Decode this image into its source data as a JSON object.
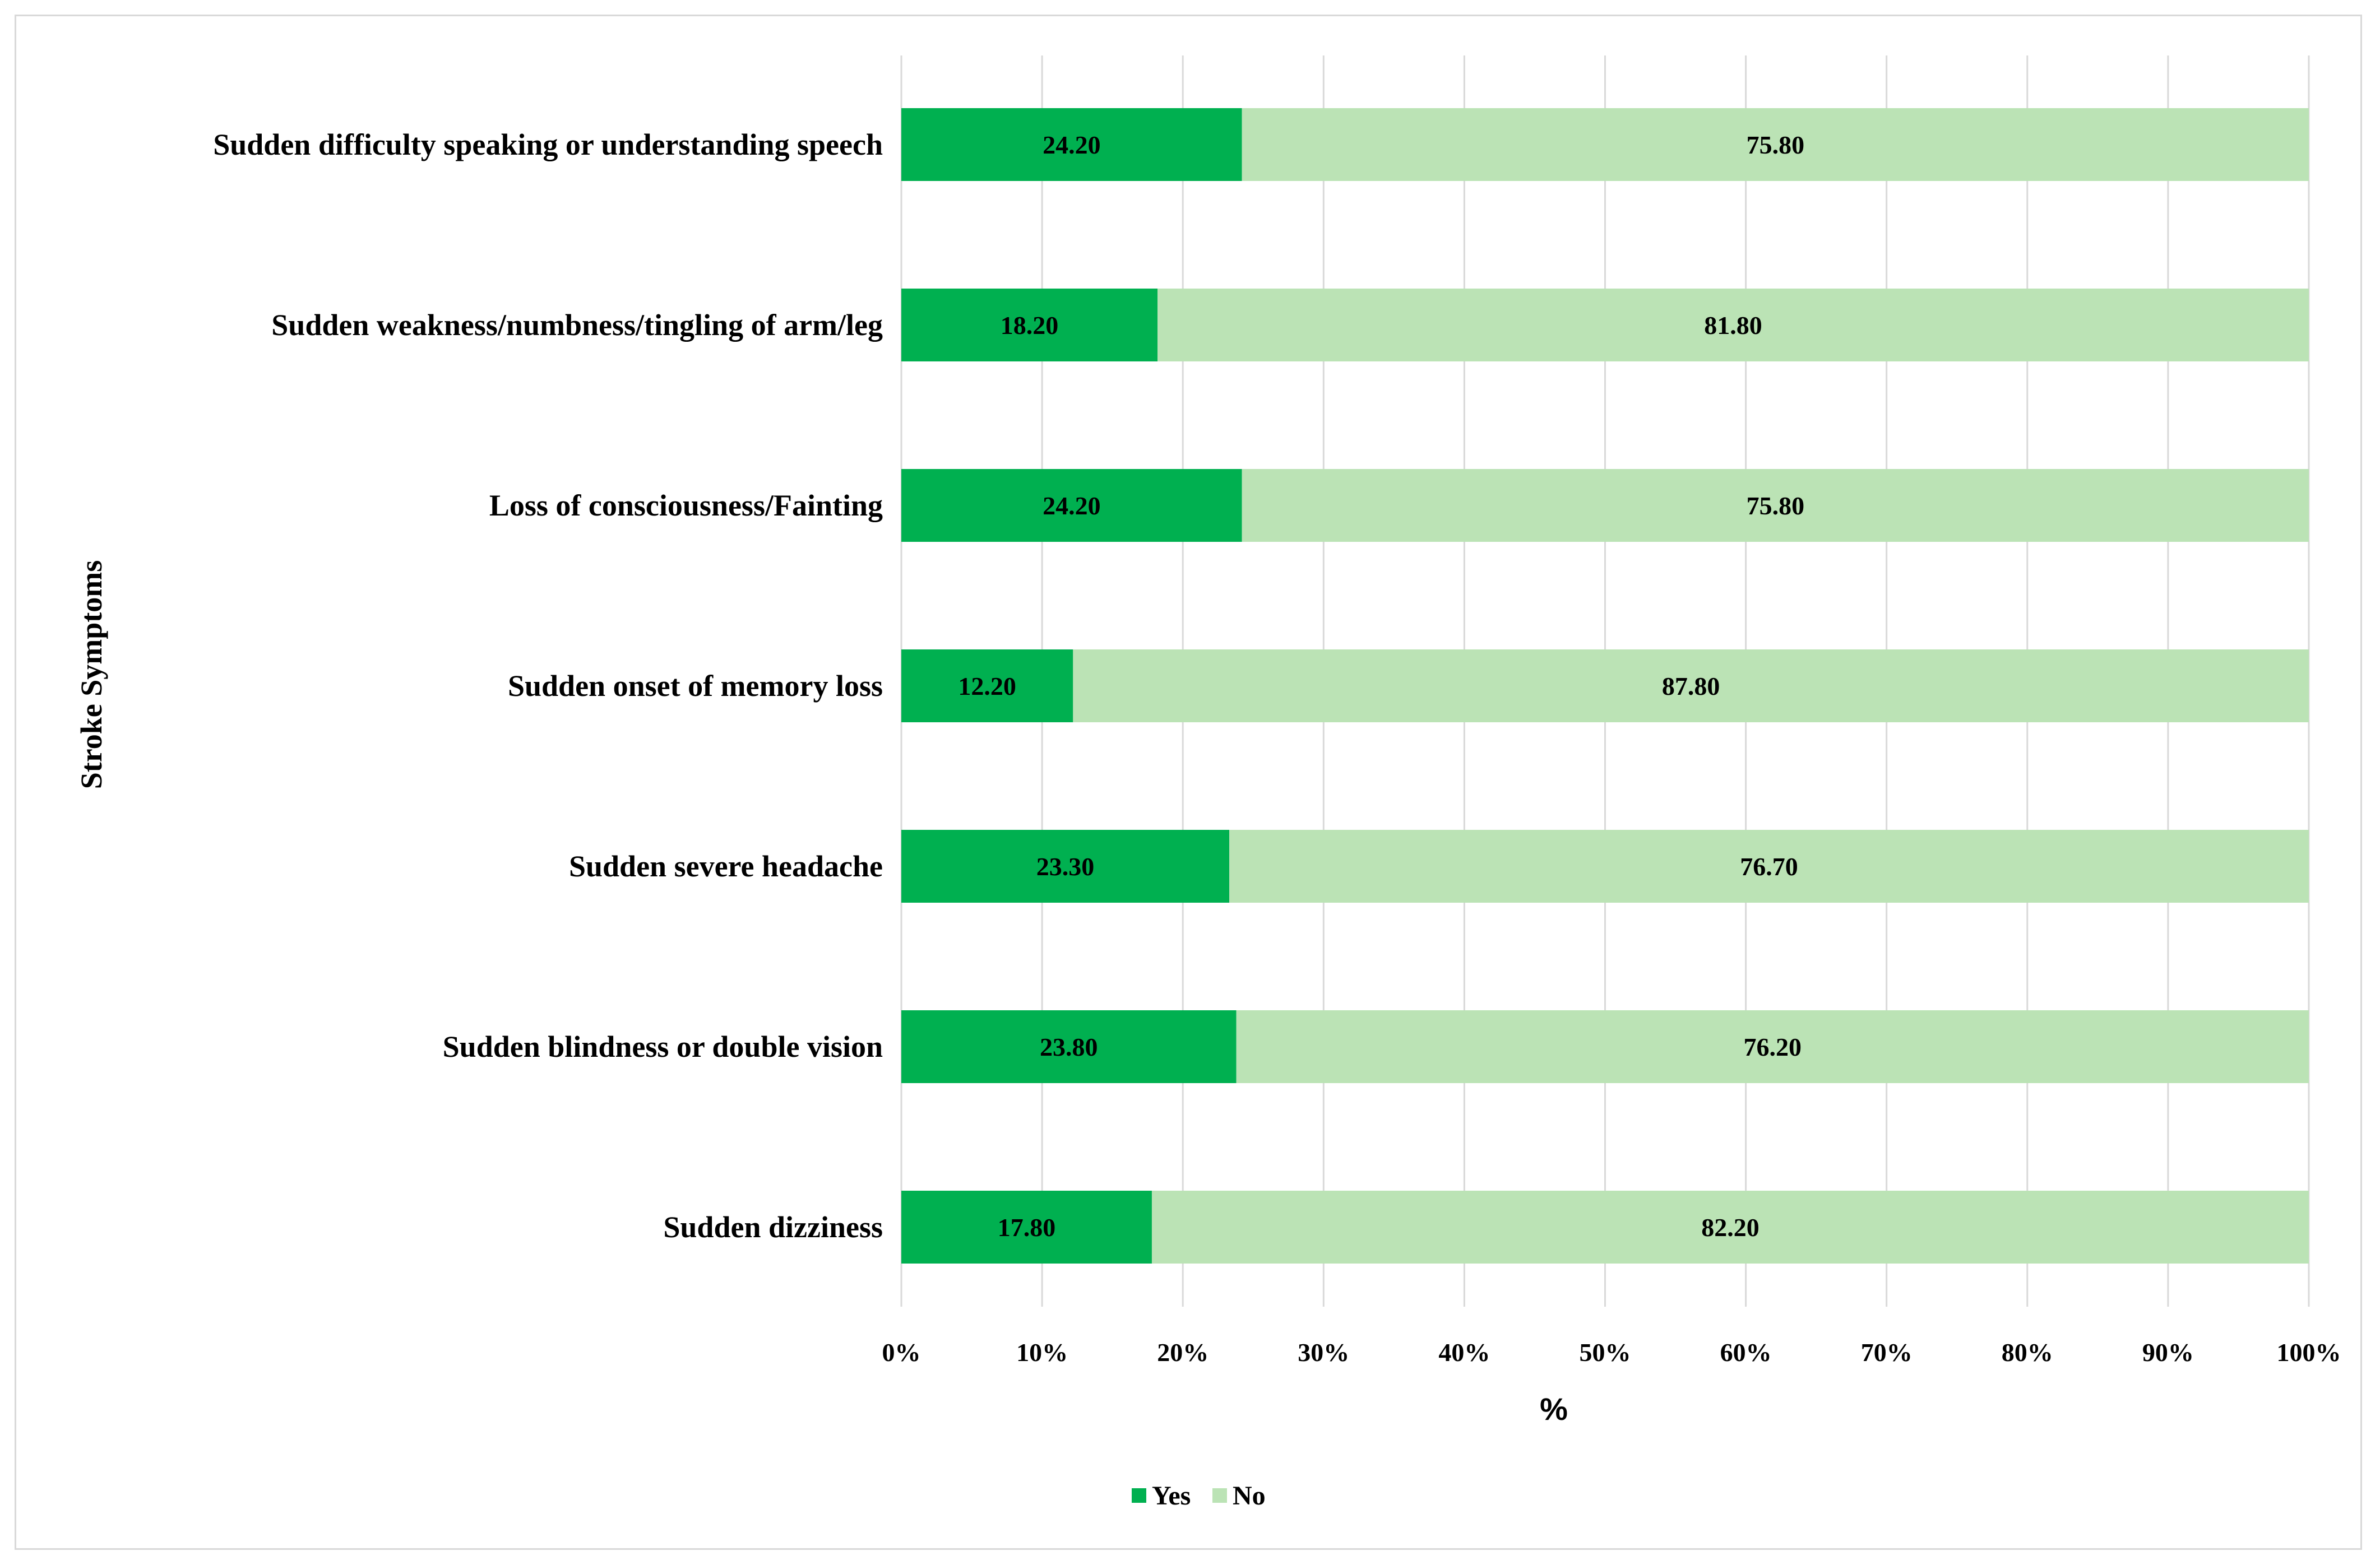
{
  "chart_data": {
    "type": "bar",
    "orientation": "horizontal",
    "stacked": "100%",
    "categories": [
      "Sudden difficulty speaking or understanding speech",
      "Sudden weakness/numbness/tingling of arm/leg",
      "Loss of consciousness/Fainting",
      "Sudden onset of memory loss",
      "Sudden severe headache",
      "Sudden blindness or double vision",
      "Sudden dizziness"
    ],
    "series": [
      {
        "name": "Yes",
        "color": "#00b050",
        "values": [
          24.2,
          18.2,
          24.2,
          12.2,
          23.3,
          23.8,
          17.8
        ],
        "labels": [
          "24.20",
          "18.20",
          "24.20",
          "12.20",
          "23.30",
          "23.80",
          "17.80"
        ]
      },
      {
        "name": "No",
        "color": "#bbe3b5",
        "values": [
          75.8,
          81.8,
          75.8,
          87.8,
          76.7,
          76.2,
          82.2
        ],
        "labels": [
          "75.80",
          "81.80",
          "75.80",
          "87.80",
          "76.70",
          "76.20",
          "82.20"
        ]
      }
    ],
    "xlabel": "%",
    "ylabel": "Stroke Symptoms",
    "xlim": [
      0,
      100
    ],
    "xticks": [
      "0%",
      "10%",
      "20%",
      "30%",
      "40%",
      "50%",
      "60%",
      "70%",
      "80%",
      "90%",
      "100%"
    ],
    "grid": "vertical",
    "legend": "bottom-center"
  }
}
